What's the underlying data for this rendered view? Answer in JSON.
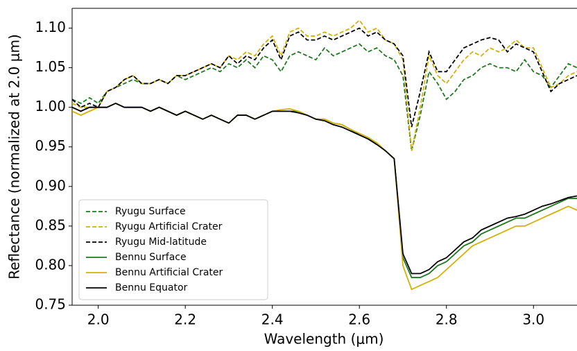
{
  "chart_data": {
    "type": "line",
    "xlabel": "Wavelength (μm)",
    "ylabel": "Reflectance (normalized at 2.0 μm)",
    "x": [
      1.94,
      1.96,
      1.98,
      2.0,
      2.02,
      2.04,
      2.06,
      2.08,
      2.1,
      2.12,
      2.14,
      2.16,
      2.18,
      2.2,
      2.22,
      2.24,
      2.26,
      2.28,
      2.3,
      2.32,
      2.34,
      2.36,
      2.38,
      2.4,
      2.42,
      2.44,
      2.46,
      2.48,
      2.5,
      2.52,
      2.54,
      2.56,
      2.58,
      2.6,
      2.62,
      2.64,
      2.66,
      2.68,
      2.7,
      2.72,
      2.74,
      2.76,
      2.78,
      2.8,
      2.82,
      2.84,
      2.86,
      2.88,
      2.9,
      2.92,
      2.94,
      2.96,
      2.98,
      3.0,
      3.02,
      3.04,
      3.06,
      3.08,
      3.1
    ],
    "series": [
      {
        "name": "Ryugu Surface",
        "color": "#1f7a1f",
        "linestyle": "dashed",
        "values": [
          1.01,
          1.005,
          1.012,
          1.005,
          1.02,
          1.025,
          1.03,
          1.035,
          1.03,
          1.03,
          1.035,
          1.03,
          1.04,
          1.035,
          1.04,
          1.045,
          1.05,
          1.045,
          1.055,
          1.05,
          1.06,
          1.05,
          1.065,
          1.06,
          1.045,
          1.065,
          1.07,
          1.065,
          1.06,
          1.075,
          1.065,
          1.07,
          1.075,
          1.08,
          1.07,
          1.075,
          1.065,
          1.06,
          1.04,
          0.945,
          0.99,
          1.045,
          1.03,
          1.01,
          1.02,
          1.035,
          1.04,
          1.05,
          1.055,
          1.05,
          1.05,
          1.045,
          1.06,
          1.045,
          1.04,
          1.025,
          1.04,
          1.055,
          1.05
        ]
      },
      {
        "name": "Ryugu Artificial Crater",
        "color": "#d4b106",
        "linestyle": "dashed",
        "values": [
          1.005,
          1.0,
          1.0,
          1.0,
          1.02,
          1.025,
          1.035,
          1.04,
          1.03,
          1.03,
          1.035,
          1.03,
          1.04,
          1.04,
          1.045,
          1.05,
          1.055,
          1.05,
          1.065,
          1.06,
          1.07,
          1.065,
          1.08,
          1.09,
          1.065,
          1.095,
          1.1,
          1.09,
          1.09,
          1.095,
          1.09,
          1.095,
          1.1,
          1.11,
          1.095,
          1.1,
          1.085,
          1.08,
          1.06,
          0.945,
          1.0,
          1.065,
          1.04,
          1.03,
          1.045,
          1.06,
          1.07,
          1.065,
          1.075,
          1.07,
          1.075,
          1.085,
          1.075,
          1.075,
          1.05,
          1.025,
          1.03,
          1.04,
          1.045
        ]
      },
      {
        "name": "Ryugu Mid-latitude",
        "color": "#000000",
        "linestyle": "dashed",
        "values": [
          1.01,
          1.0,
          1.005,
          1.0,
          1.02,
          1.025,
          1.035,
          1.04,
          1.03,
          1.03,
          1.035,
          1.03,
          1.04,
          1.04,
          1.045,
          1.05,
          1.055,
          1.05,
          1.065,
          1.055,
          1.065,
          1.06,
          1.075,
          1.085,
          1.06,
          1.09,
          1.095,
          1.085,
          1.085,
          1.09,
          1.085,
          1.09,
          1.095,
          1.1,
          1.09,
          1.095,
          1.085,
          1.08,
          1.065,
          0.975,
          1.02,
          1.07,
          1.045,
          1.045,
          1.06,
          1.075,
          1.08,
          1.085,
          1.088,
          1.085,
          1.07,
          1.08,
          1.075,
          1.07,
          1.045,
          1.02,
          1.03,
          1.035,
          1.04
        ]
      },
      {
        "name": "Bennu Surface",
        "color": "#1f7a1f",
        "linestyle": "solid",
        "values": [
          1.0,
          0.995,
          1.0,
          1.0,
          1.0,
          1.005,
          1.0,
          1.0,
          1.0,
          0.995,
          1.0,
          0.995,
          0.99,
          0.995,
          0.99,
          0.985,
          0.99,
          0.985,
          0.98,
          0.99,
          0.99,
          0.985,
          0.99,
          0.995,
          0.995,
          0.995,
          0.995,
          0.99,
          0.985,
          0.985,
          0.98,
          0.978,
          0.972,
          0.965,
          0.96,
          0.955,
          0.945,
          0.935,
          0.81,
          0.785,
          0.785,
          0.79,
          0.8,
          0.805,
          0.815,
          0.825,
          0.83,
          0.84,
          0.845,
          0.85,
          0.855,
          0.86,
          0.86,
          0.865,
          0.87,
          0.875,
          0.88,
          0.885,
          0.885
        ]
      },
      {
        "name": "Bennu Artificial Crater",
        "color": "#d4b106",
        "linestyle": "solid",
        "values": [
          0.995,
          0.99,
          0.995,
          1.0,
          1.0,
          1.005,
          1.0,
          1.0,
          1.0,
          0.995,
          1.0,
          0.995,
          0.99,
          0.995,
          0.99,
          0.985,
          0.99,
          0.985,
          0.98,
          0.99,
          0.99,
          0.985,
          0.99,
          0.995,
          0.997,
          0.998,
          0.995,
          0.99,
          0.985,
          0.985,
          0.98,
          0.978,
          0.972,
          0.967,
          0.962,
          0.955,
          0.945,
          0.935,
          0.8,
          0.77,
          0.775,
          0.78,
          0.785,
          0.795,
          0.805,
          0.815,
          0.825,
          0.83,
          0.835,
          0.84,
          0.845,
          0.85,
          0.85,
          0.855,
          0.86,
          0.865,
          0.87,
          0.875,
          0.87
        ]
      },
      {
        "name": "Bennu Equator",
        "color": "#000000",
        "linestyle": "solid",
        "values": [
          1.0,
          0.995,
          1.0,
          1.0,
          1.0,
          1.005,
          1.0,
          1.0,
          1.0,
          0.995,
          1.0,
          0.995,
          0.99,
          0.995,
          0.99,
          0.985,
          0.99,
          0.985,
          0.98,
          0.99,
          0.99,
          0.985,
          0.99,
          0.995,
          0.995,
          0.995,
          0.993,
          0.99,
          0.985,
          0.983,
          0.978,
          0.975,
          0.97,
          0.965,
          0.96,
          0.953,
          0.945,
          0.935,
          0.815,
          0.79,
          0.79,
          0.795,
          0.805,
          0.81,
          0.82,
          0.83,
          0.835,
          0.845,
          0.85,
          0.855,
          0.86,
          0.862,
          0.865,
          0.87,
          0.875,
          0.878,
          0.882,
          0.886,
          0.888
        ]
      }
    ],
    "xlim": [
      1.94,
      3.1
    ],
    "ylim": [
      0.75,
      1.125
    ],
    "xticks": [
      {
        "value": 2,
        "label": "2.0"
      },
      {
        "value": 2.2,
        "label": "2.2"
      },
      {
        "value": 2.4,
        "label": "2.4"
      },
      {
        "value": 2.6,
        "label": "2.6"
      },
      {
        "value": 2.8,
        "label": "2.8"
      },
      {
        "value": 3,
        "label": "3.0"
      }
    ],
    "yticks": [
      0.75,
      {
        "value": 0.8,
        "label": "0.80"
      },
      0.85,
      {
        "value": 0.9,
        "label": "0.90"
      },
      0.95,
      {
        "value": 1,
        "label": "1.00"
      },
      1.05,
      {
        "value": 1.1,
        "label": "1.10"
      }
    ],
    "grid": false,
    "legend": "lower left"
  }
}
